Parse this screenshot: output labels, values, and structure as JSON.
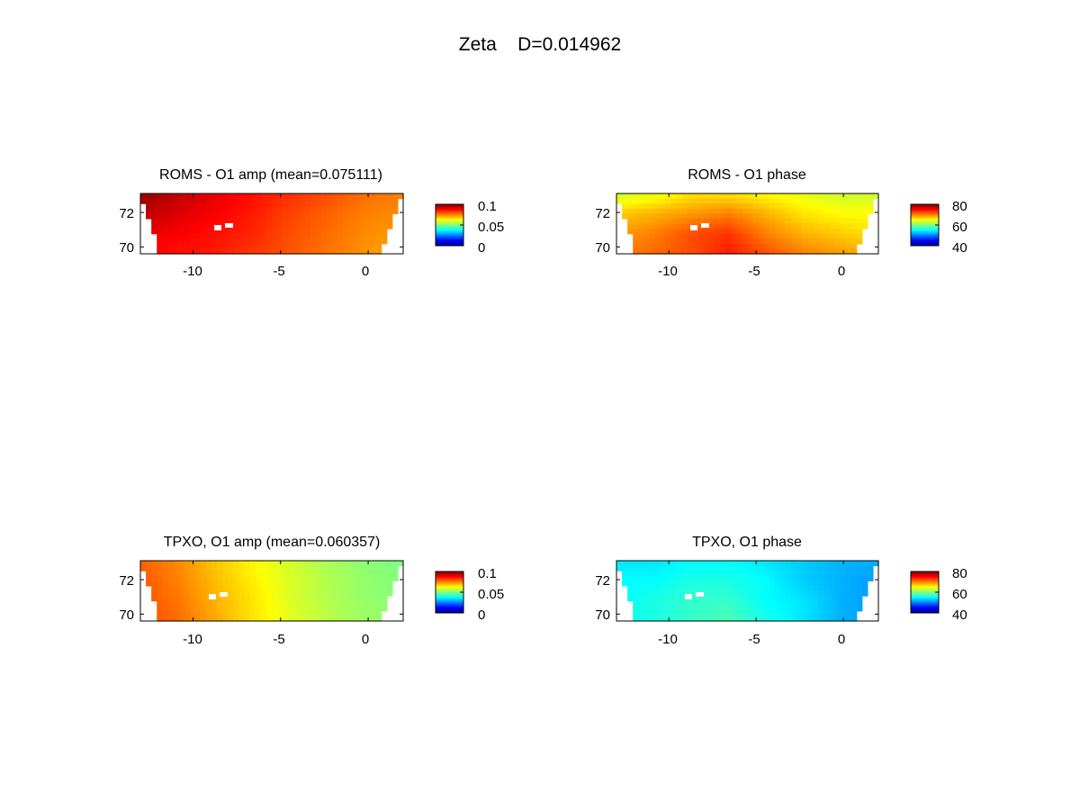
{
  "figure": {
    "title": "Zeta    D=0.014962"
  },
  "colormap": "jet",
  "chart_data": [
    {
      "type": "heatmap",
      "title": "ROMS - O1 amp (mean=0.075111)",
      "xticks": [
        "-10",
        "-5",
        "0"
      ],
      "yticks": [
        "72",
        "70"
      ],
      "xlim": [
        -13,
        2
      ],
      "ylim": [
        69.6,
        73.1
      ],
      "clim": [
        0,
        0.1
      ],
      "colorbar_ticks": [
        "0.1",
        "0.05",
        "0"
      ],
      "field_note": "values ~0.085-0.1 in west, ~0.07 in east",
      "grid_values": [
        [
          0.098,
          0.094,
          0.09,
          0.086,
          0.083,
          0.08,
          0.077,
          0.075
        ],
        [
          0.094,
          0.091,
          0.088,
          0.085,
          0.081,
          0.078,
          0.075,
          0.074
        ],
        [
          0.09,
          0.088,
          0.086,
          0.084,
          0.08,
          0.077,
          0.074,
          0.072
        ],
        [
          0.088,
          0.086,
          0.085,
          0.082,
          0.079,
          0.076,
          0.073,
          0.071
        ]
      ]
    },
    {
      "type": "heatmap",
      "title": "ROMS - O1 phase",
      "xticks": [
        "-10",
        "-5",
        "0"
      ],
      "yticks": [
        "72",
        "70"
      ],
      "xlim": [
        -13,
        2
      ],
      "ylim": [
        69.6,
        73.1
      ],
      "clim": [
        40,
        80
      ],
      "colorbar_ticks": [
        "80",
        "60",
        "40"
      ],
      "grid_values": [
        [
          63,
          64,
          66,
          66,
          65,
          64,
          63,
          63
        ],
        [
          67,
          68,
          69,
          70,
          68,
          66,
          65,
          65
        ],
        [
          69,
          70,
          72,
          73,
          70,
          68,
          67,
          66
        ],
        [
          70,
          71,
          72,
          74,
          72,
          70,
          69,
          68
        ]
      ]
    },
    {
      "type": "heatmap",
      "title": "TPXO, O1 amp (mean=0.060357)",
      "xticks": [
        "-10",
        "-5",
        "0"
      ],
      "yticks": [
        "72",
        "70"
      ],
      "xlim": [
        -13,
        2
      ],
      "ylim": [
        69.6,
        73.1
      ],
      "clim": [
        0,
        0.1
      ],
      "colorbar_ticks": [
        "0.1",
        "0.05",
        "0"
      ],
      "grid_values": [
        [
          0.078,
          0.074,
          0.068,
          0.063,
          0.058,
          0.054,
          0.051,
          0.05
        ],
        [
          0.079,
          0.075,
          0.069,
          0.064,
          0.059,
          0.055,
          0.052,
          0.05
        ],
        [
          0.08,
          0.076,
          0.07,
          0.065,
          0.059,
          0.055,
          0.052,
          0.051
        ],
        [
          0.08,
          0.077,
          0.071,
          0.065,
          0.06,
          0.056,
          0.053,
          0.051
        ]
      ]
    },
    {
      "type": "heatmap",
      "title": "TPXO, O1 phase",
      "xticks": [
        "-10",
        "-5",
        "0"
      ],
      "yticks": [
        "72",
        "70"
      ],
      "xlim": [
        -13,
        2
      ],
      "ylim": [
        69.6,
        73.1
      ],
      "clim": [
        40,
        80
      ],
      "colorbar_ticks": [
        "80",
        "60",
        "40"
      ],
      "grid_values": [
        [
          54,
          54,
          55,
          55,
          54,
          53,
          52,
          52
        ],
        [
          55,
          55,
          56,
          56,
          55,
          53,
          52,
          51
        ],
        [
          55,
          56,
          57,
          57,
          55,
          54,
          52,
          51
        ],
        [
          56,
          56,
          57,
          58,
          56,
          54,
          52,
          51
        ]
      ]
    }
  ]
}
